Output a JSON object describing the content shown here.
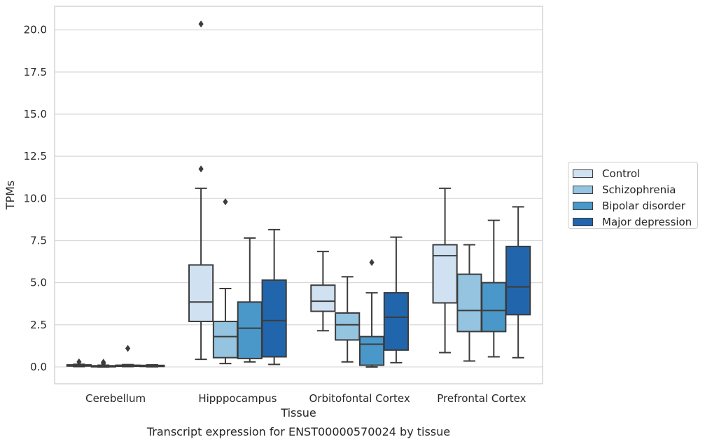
{
  "chart_data": {
    "type": "box",
    "title": "Transcript expression for ENST00000570024 by tissue",
    "xlabel": "Tissue",
    "ylabel": "TPMs",
    "ylim": [
      -1.0,
      21.4
    ],
    "yticks": [
      "0.0",
      "2.5",
      "5.0",
      "7.5",
      "10.0",
      "12.5",
      "15.0",
      "17.5",
      "20.0"
    ],
    "grid": true,
    "legend_position": "right",
    "categories": [
      "Cerebellum",
      "Hipppocampus",
      "Orbitofontal Cortex",
      "Prefrontal Cortex"
    ],
    "series": [
      {
        "name": "Control",
        "color": "#d0e1f2",
        "boxes": [
          {
            "whislo": 0.02,
            "q1": 0.05,
            "med": 0.08,
            "q3": 0.12,
            "whishi": 0.16,
            "fliers": [
              0.3
            ]
          },
          {
            "whislo": 0.45,
            "q1": 2.7,
            "med": 3.85,
            "q3": 6.05,
            "whishi": 10.6,
            "fliers": [
              11.75,
              20.35
            ]
          },
          {
            "whislo": 2.15,
            "q1": 3.3,
            "med": 3.9,
            "q3": 4.85,
            "whishi": 6.85,
            "fliers": []
          },
          {
            "whislo": 0.85,
            "q1": 3.8,
            "med": 6.6,
            "q3": 7.25,
            "whishi": 10.6,
            "fliers": []
          }
        ]
      },
      {
        "name": "Schizophrenia",
        "color": "#94c4df",
        "boxes": [
          {
            "whislo": 0.0,
            "q1": 0.02,
            "med": 0.04,
            "q3": 0.07,
            "whishi": 0.1,
            "fliers": [
              0.2,
              0.28
            ]
          },
          {
            "whislo": 0.2,
            "q1": 0.55,
            "med": 1.8,
            "q3": 2.7,
            "whishi": 4.65,
            "fliers": [
              9.8
            ]
          },
          {
            "whislo": 0.3,
            "q1": 1.6,
            "med": 2.5,
            "q3": 3.2,
            "whishi": 5.35,
            "fliers": []
          },
          {
            "whislo": 0.35,
            "q1": 2.1,
            "med": 3.35,
            "q3": 5.5,
            "whishi": 7.25,
            "fliers": []
          }
        ]
      },
      {
        "name": "Bipolar disorder",
        "color": "#4a98c9",
        "boxes": [
          {
            "whislo": 0.02,
            "q1": 0.04,
            "med": 0.06,
            "q3": 0.1,
            "whishi": 0.14,
            "fliers": [
              1.1
            ]
          },
          {
            "whislo": 0.3,
            "q1": 0.5,
            "med": 2.3,
            "q3": 3.85,
            "whishi": 7.65,
            "fliers": []
          },
          {
            "whislo": 0.0,
            "q1": 0.1,
            "med": 1.35,
            "q3": 1.8,
            "whishi": 4.4,
            "fliers": [
              6.2
            ]
          },
          {
            "whislo": 0.6,
            "q1": 2.1,
            "med": 3.35,
            "q3": 5.0,
            "whishi": 8.7,
            "fliers": []
          }
        ]
      },
      {
        "name": "Major depression",
        "color": "#2166ac",
        "boxes": [
          {
            "whislo": 0.01,
            "q1": 0.03,
            "med": 0.05,
            "q3": 0.09,
            "whishi": 0.12,
            "fliers": []
          },
          {
            "whislo": 0.15,
            "q1": 0.6,
            "med": 2.75,
            "q3": 5.15,
            "whishi": 8.15,
            "fliers": []
          },
          {
            "whislo": 0.25,
            "q1": 1.0,
            "med": 2.95,
            "q3": 4.4,
            "whishi": 7.7,
            "fliers": []
          },
          {
            "whislo": 0.55,
            "q1": 3.1,
            "med": 4.75,
            "q3": 7.15,
            "whishi": 9.5,
            "fliers": []
          }
        ]
      }
    ]
  }
}
